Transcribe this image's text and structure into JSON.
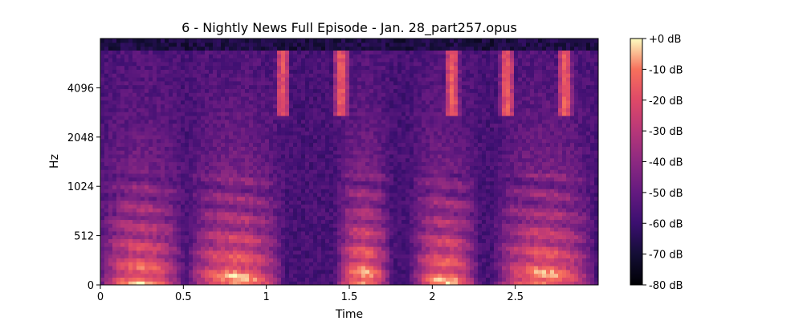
{
  "chart_data": {
    "type": "heatmap",
    "title": "6 - Nightly News Full Episode - Jan. 28_part257.opus",
    "xlabel": "Time",
    "ylabel": "Hz",
    "xlim": [
      0,
      3.0
    ],
    "x_ticks": [
      {
        "value": 0,
        "label": "0"
      },
      {
        "value": 0.5,
        "label": "0.5"
      },
      {
        "value": 1,
        "label": "1"
      },
      {
        "value": 1.5,
        "label": "1.5"
      },
      {
        "value": 2,
        "label": "2"
      },
      {
        "value": 2.5,
        "label": "2.5"
      }
    ],
    "y_scale": "mel",
    "y_ticks": [
      {
        "value": 0,
        "label": "0"
      },
      {
        "value": 512,
        "label": "512"
      },
      {
        "value": 1024,
        "label": "1024"
      },
      {
        "value": 2048,
        "label": "2048"
      },
      {
        "value": 4096,
        "label": "4096"
      }
    ],
    "colormap": "magma",
    "colorbar": {
      "range_db": [
        -80,
        0
      ],
      "ticks": [
        {
          "value": 0,
          "label": "+0 dB"
        },
        {
          "value": -10,
          "label": "-10 dB"
        },
        {
          "value": -20,
          "label": "-20 dB"
        },
        {
          "value": -30,
          "label": "-30 dB"
        },
        {
          "value": -40,
          "label": "-40 dB"
        },
        {
          "value": -50,
          "label": "-50 dB"
        },
        {
          "value": -60,
          "label": "-60 dB"
        },
        {
          "value": -70,
          "label": "-70 dB"
        },
        {
          "value": -80,
          "label": "-80 dB"
        }
      ]
    },
    "bright_segments": [
      {
        "t_start": 0.02,
        "t_end": 0.48,
        "level_db": -10
      },
      {
        "t_start": 0.55,
        "t_end": 1.08,
        "level_db": -8
      },
      {
        "t_start": 1.45,
        "t_end": 1.72,
        "level_db": -5
      },
      {
        "t_start": 1.9,
        "t_end": 2.25,
        "level_db": -10
      },
      {
        "t_start": 2.4,
        "t_end": 2.95,
        "level_db": -8
      }
    ],
    "high_band_bursts": [
      {
        "t": 1.1,
        "level_db": -12
      },
      {
        "t": 1.45,
        "level_db": -10
      },
      {
        "t": 2.12,
        "level_db": -12
      },
      {
        "t": 2.45,
        "level_db": -10
      },
      {
        "t": 2.8,
        "level_db": -12
      }
    ]
  }
}
